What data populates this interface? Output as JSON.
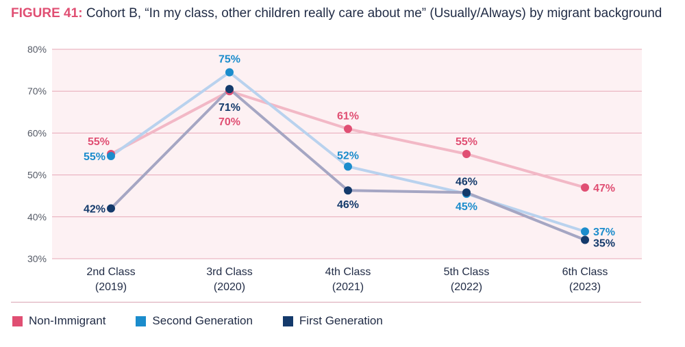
{
  "title": {
    "figure": "FIGURE 41:",
    "text": "Cohort B, “In my class, other children really care about me” (Usually/Always) by migrant background"
  },
  "chart_data": {
    "type": "line",
    "title": "Cohort B, “In my class, other children really care about me” (Usually/Always) by migrant background",
    "categories": [
      [
        "2nd Class",
        "(2019)"
      ],
      [
        "3rd Class",
        "(2020)"
      ],
      [
        "4th Class",
        "(2021)"
      ],
      [
        "5th Class",
        "(2022)"
      ],
      [
        "6th Class",
        "(2023)"
      ]
    ],
    "ylim": [
      30,
      80
    ],
    "yticks": [
      30,
      40,
      50,
      60,
      70,
      80
    ],
    "ytick_labels": [
      "30%",
      "40%",
      "50%",
      "60%",
      "70%",
      "80%"
    ],
    "grid": true,
    "legend_position": "bottom-left",
    "series": [
      {
        "name": "Non-Immigrant",
        "values": [
          55,
          70,
          61,
          55,
          47
        ],
        "labels": [
          "55%",
          "70%",
          "61%",
          "55%",
          "47%"
        ],
        "point_color": "#e04f73",
        "line_color": "#f2b8c6"
      },
      {
        "name": "Second Generation",
        "values": [
          54.5,
          74.5,
          52,
          45.5,
          36.5
        ],
        "labels": [
          "55%",
          "75%",
          "52%",
          "45%",
          "37%"
        ],
        "point_color": "#1b8ccc",
        "line_color": "#b9d2ee"
      },
      {
        "name": "First Generation",
        "values": [
          42,
          70.5,
          46.3,
          45.8,
          34.5
        ],
        "labels": [
          "42%",
          "71%",
          "46%",
          "46%",
          "35%"
        ],
        "point_color": "#143a6b",
        "line_color": "#a5a6c3"
      }
    ]
  },
  "legend": {
    "items": [
      {
        "label": "Non-Immigrant",
        "color": "#e04f73"
      },
      {
        "label": "Second Generation",
        "color": "#1b8ccc"
      },
      {
        "label": "First Generation",
        "color": "#143a6b"
      }
    ]
  }
}
